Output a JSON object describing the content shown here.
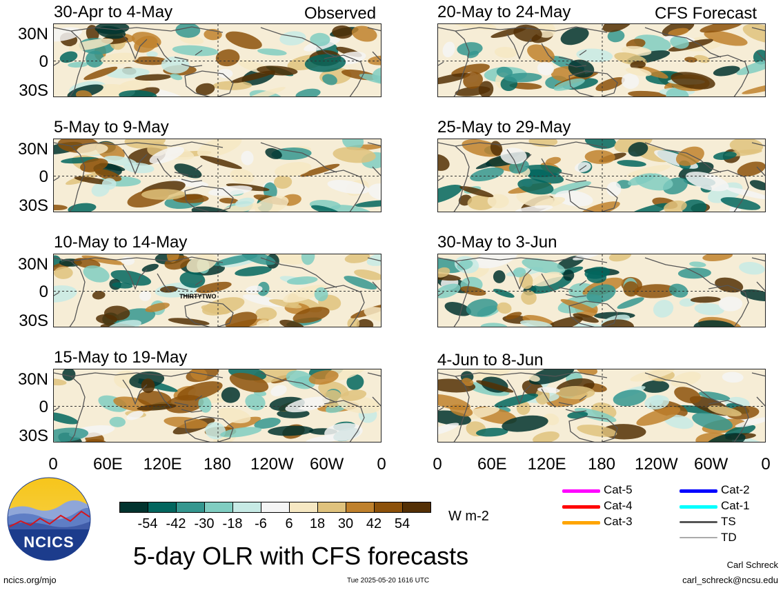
{
  "left_header": "Observed",
  "right_header": "CFS Forecast",
  "observed_panels": [
    {
      "title": "30-Apr to 4-May"
    },
    {
      "title": "5-May to 9-May"
    },
    {
      "title": "10-May to 14-May",
      "annotation": "THIRTYTWO"
    },
    {
      "title": "15-May to 19-May"
    }
  ],
  "forecast_panels": [
    {
      "title": "20-May to 24-May"
    },
    {
      "title": "25-May to 29-May"
    },
    {
      "title": "30-May to 3-Jun"
    },
    {
      "title": "4-Jun to 8-Jun"
    }
  ],
  "lat_labels": [
    "30N",
    "0",
    "30S"
  ],
  "lon_labels": [
    "0",
    "60E",
    "120E",
    "180",
    "120W",
    "60W",
    "0"
  ],
  "colorbar": {
    "colors": [
      "#01332e",
      "#02665e",
      "#35978f",
      "#80cdc1",
      "#c7eae5",
      "#f5f5f5",
      "#f6e8c3",
      "#dfc27d",
      "#bf812d",
      "#8c510a",
      "#543005"
    ],
    "labels": [
      "-54",
      "-42",
      "-30",
      "-18",
      "-6",
      "6",
      "18",
      "30",
      "42",
      "54"
    ],
    "units": "W m-2"
  },
  "storm_legend": [
    {
      "label": "Cat-5",
      "color": "#ff00ff"
    },
    {
      "label": "Cat-4",
      "color": "#ff0000"
    },
    {
      "label": "Cat-3",
      "color": "#ffa500"
    },
    {
      "label": "Cat-2",
      "color": "#0000ff"
    },
    {
      "label": "Cat-1",
      "color": "#00ffff"
    },
    {
      "label": "TS",
      "color": "#555555"
    },
    {
      "label": "TD",
      "color": "#aaaaaa"
    }
  ],
  "logo_text": "NCICS",
  "main_title": "5-day OLR with CFS forecasts",
  "footer_left": "ncics.org/mjo",
  "footer_center": "Tue 2025-05-20 1616 UTC",
  "author": "Carl Schreck",
  "email": "carl_schreck@ncsu.edu"
}
